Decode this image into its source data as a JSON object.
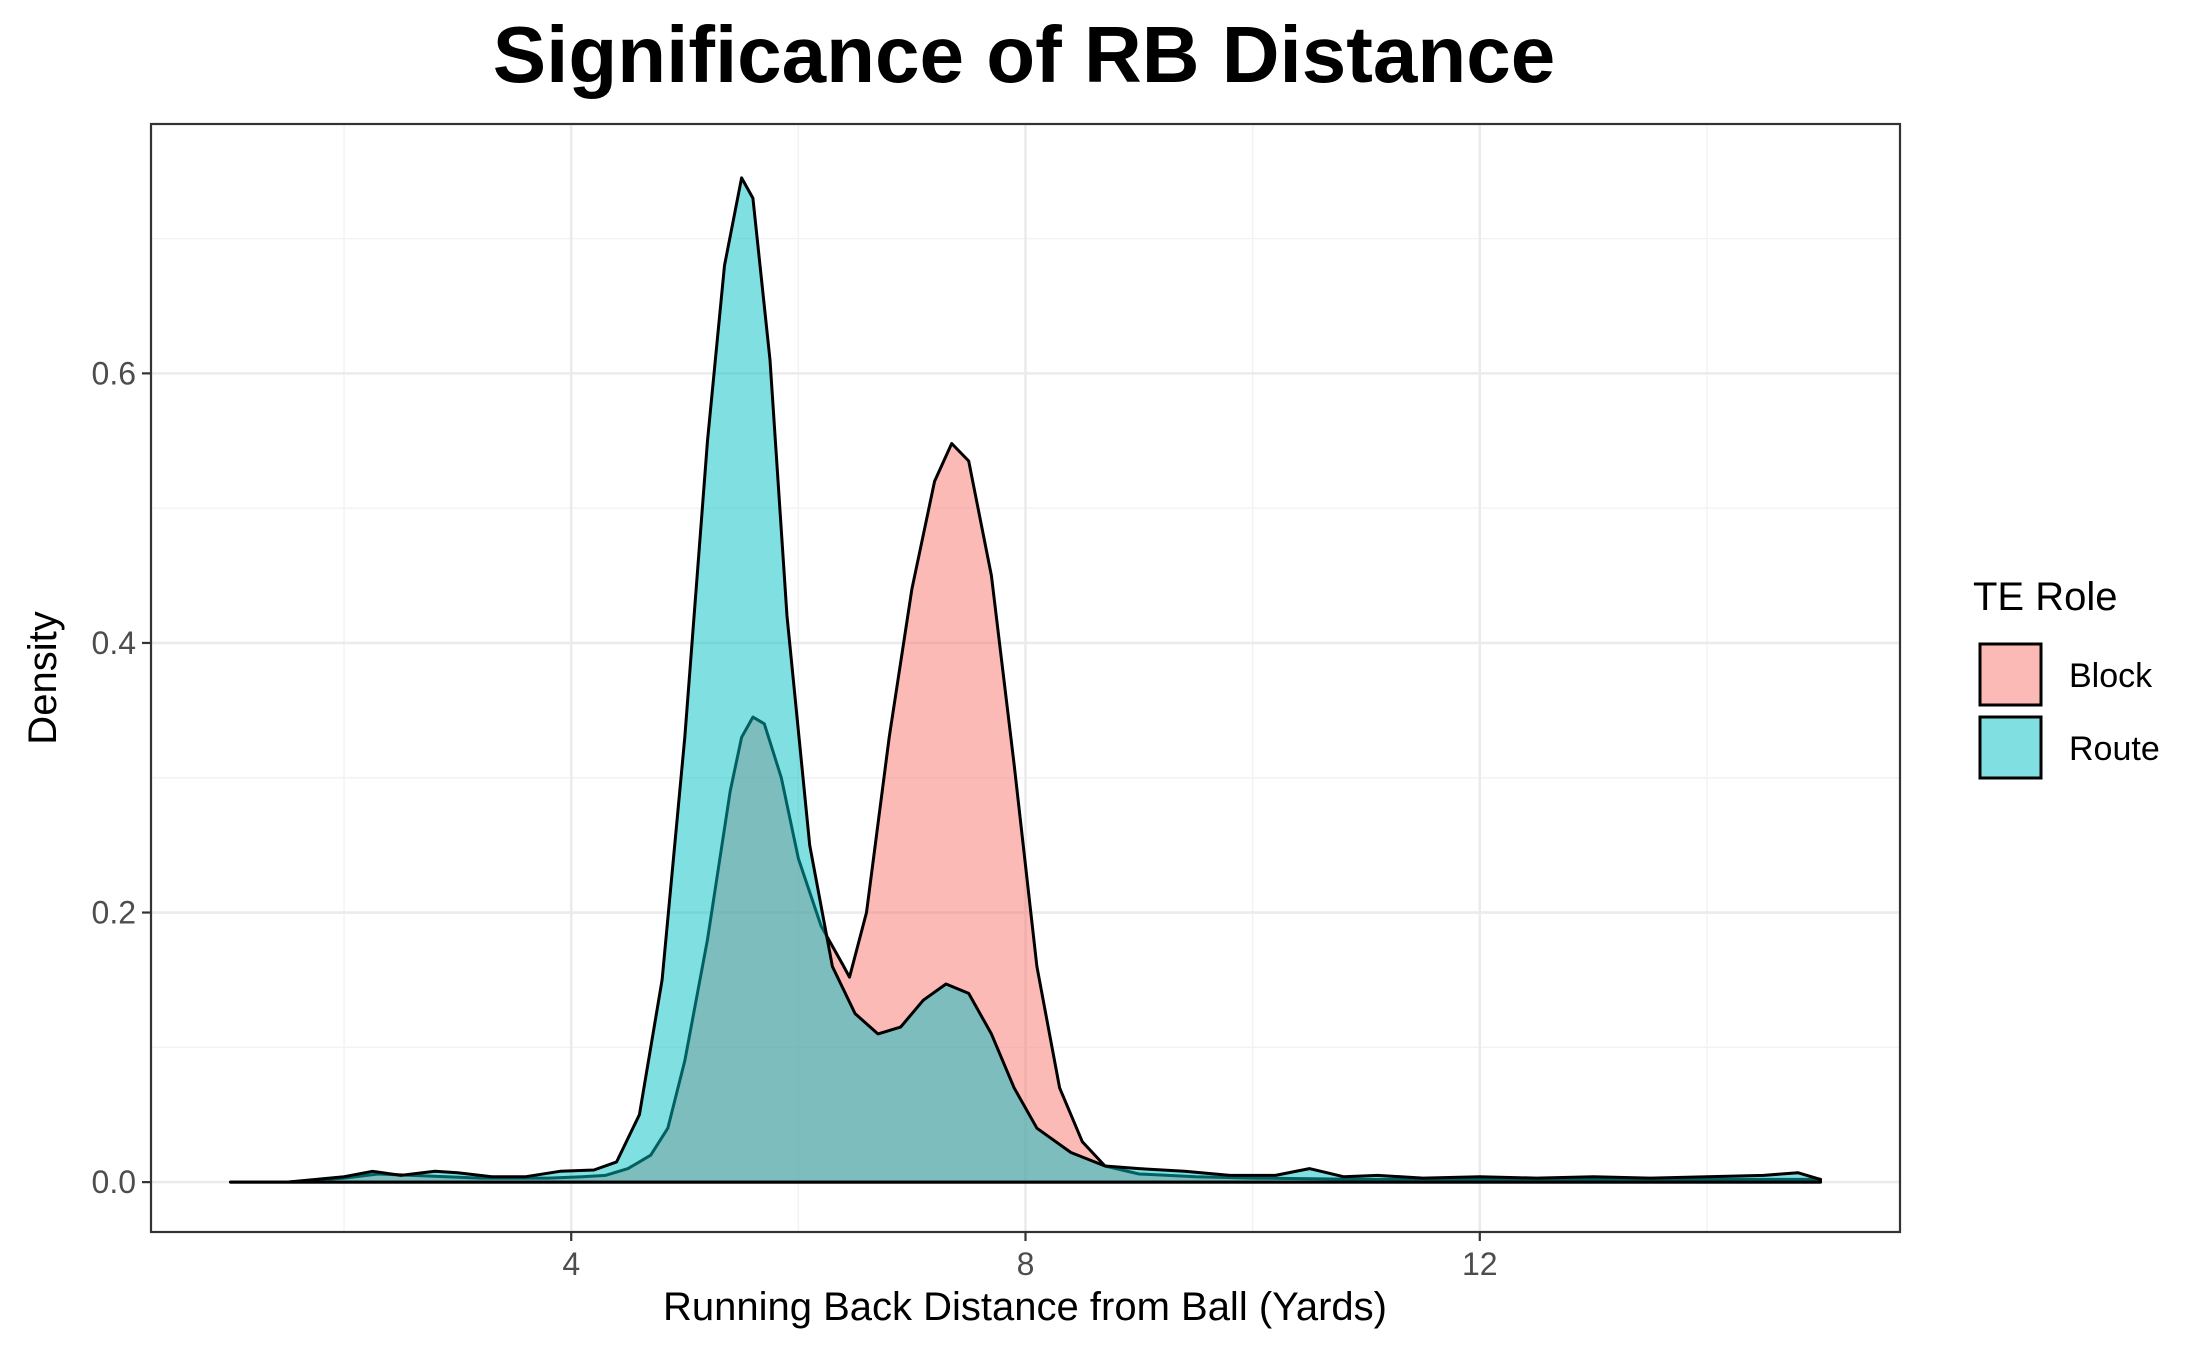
{
  "chart_data": {
    "type": "area",
    "title": "Significance of RB Distance",
    "xlabel": "Running Back Distance from Ball (Yards)",
    "ylabel": "Density",
    "xlim": [
      0.3,
      15.7
    ],
    "ylim": [
      -0.037,
      0.785
    ],
    "x_ticks": [
      4,
      8,
      12
    ],
    "x_tick_labels": [
      "4",
      "8",
      "12"
    ],
    "y_ticks": [
      0.0,
      0.2,
      0.4,
      0.6
    ],
    "y_tick_labels": [
      "0.0",
      "0.2",
      "0.4",
      "0.6"
    ],
    "grid": true,
    "legend": {
      "title": "TE Role",
      "position": "right",
      "entries": [
        "Block",
        "Route"
      ]
    },
    "series": [
      {
        "name": "Block",
        "color": "#f8766d",
        "fill_opacity": 0.5,
        "points": [
          [
            1.0,
            0.0
          ],
          [
            1.5,
            0.0
          ],
          [
            2.0,
            0.003
          ],
          [
            2.3,
            0.006
          ],
          [
            2.6,
            0.005
          ],
          [
            2.9,
            0.004
          ],
          [
            3.2,
            0.003
          ],
          [
            3.5,
            0.003
          ],
          [
            3.8,
            0.003
          ],
          [
            4.1,
            0.004
          ],
          [
            4.3,
            0.005
          ],
          [
            4.5,
            0.01
          ],
          [
            4.7,
            0.02
          ],
          [
            4.85,
            0.04
          ],
          [
            5.0,
            0.09
          ],
          [
            5.2,
            0.18
          ],
          [
            5.4,
            0.29
          ],
          [
            5.5,
            0.33
          ],
          [
            5.6,
            0.345
          ],
          [
            5.7,
            0.34
          ],
          [
            5.85,
            0.3
          ],
          [
            6.0,
            0.24
          ],
          [
            6.2,
            0.19
          ],
          [
            6.4,
            0.16
          ],
          [
            6.45,
            0.152
          ],
          [
            6.6,
            0.2
          ],
          [
            6.8,
            0.33
          ],
          [
            7.0,
            0.44
          ],
          [
            7.2,
            0.52
          ],
          [
            7.35,
            0.548
          ],
          [
            7.5,
            0.535
          ],
          [
            7.7,
            0.45
          ],
          [
            7.9,
            0.31
          ],
          [
            8.1,
            0.16
          ],
          [
            8.3,
            0.07
          ],
          [
            8.5,
            0.03
          ],
          [
            8.7,
            0.012
          ],
          [
            9.0,
            0.006
          ],
          [
            9.5,
            0.004
          ],
          [
            10.0,
            0.003
          ],
          [
            11.0,
            0.002
          ],
          [
            12.0,
            0.002
          ],
          [
            13.0,
            0.002
          ],
          [
            14.0,
            0.002
          ],
          [
            15.0,
            0.002
          ]
        ]
      },
      {
        "name": "Route",
        "color": "#00bfc4",
        "fill_opacity": 0.5,
        "points": [
          [
            1.0,
            0.0
          ],
          [
            1.5,
            0.0
          ],
          [
            2.0,
            0.004
          ],
          [
            2.25,
            0.008
          ],
          [
            2.5,
            0.005
          ],
          [
            2.8,
            0.008
          ],
          [
            3.0,
            0.007
          ],
          [
            3.3,
            0.004
          ],
          [
            3.6,
            0.004
          ],
          [
            3.9,
            0.008
          ],
          [
            4.2,
            0.009
          ],
          [
            4.4,
            0.015
          ],
          [
            4.6,
            0.05
          ],
          [
            4.8,
            0.15
          ],
          [
            5.0,
            0.33
          ],
          [
            5.2,
            0.55
          ],
          [
            5.35,
            0.68
          ],
          [
            5.5,
            0.745
          ],
          [
            5.6,
            0.73
          ],
          [
            5.75,
            0.61
          ],
          [
            5.9,
            0.42
          ],
          [
            6.1,
            0.25
          ],
          [
            6.3,
            0.16
          ],
          [
            6.5,
            0.125
          ],
          [
            6.7,
            0.11
          ],
          [
            6.9,
            0.115
          ],
          [
            7.1,
            0.135
          ],
          [
            7.3,
            0.147
          ],
          [
            7.5,
            0.14
          ],
          [
            7.7,
            0.11
          ],
          [
            7.9,
            0.07
          ],
          [
            8.1,
            0.04
          ],
          [
            8.4,
            0.022
          ],
          [
            8.7,
            0.012
          ],
          [
            9.0,
            0.01
          ],
          [
            9.4,
            0.008
          ],
          [
            9.8,
            0.005
          ],
          [
            10.2,
            0.005
          ],
          [
            10.5,
            0.01
          ],
          [
            10.8,
            0.004
          ],
          [
            11.1,
            0.005
          ],
          [
            11.5,
            0.003
          ],
          [
            12.0,
            0.004
          ],
          [
            12.5,
            0.003
          ],
          [
            13.0,
            0.004
          ],
          [
            13.5,
            0.003
          ],
          [
            14.0,
            0.004
          ],
          [
            14.5,
            0.005
          ],
          [
            14.8,
            0.007
          ],
          [
            15.0,
            0.002
          ]
        ]
      }
    ]
  }
}
